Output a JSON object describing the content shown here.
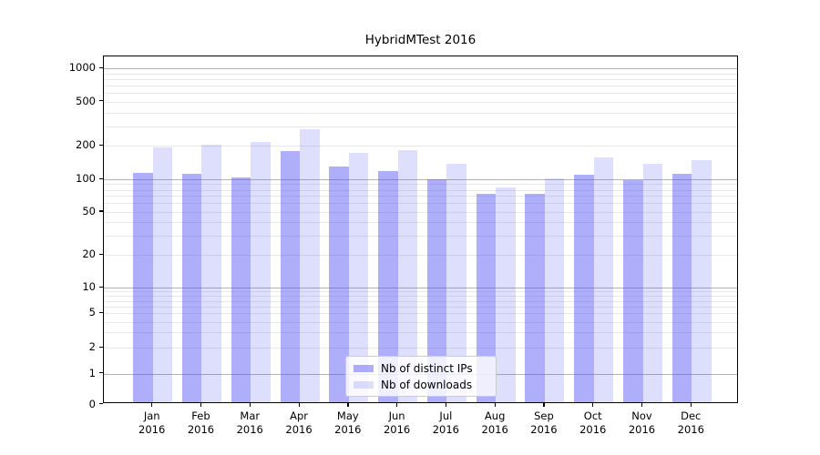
{
  "chart_data": {
    "type": "bar",
    "title": "HybridMTest 2016",
    "categories": [
      "Jan 2016",
      "Feb 2016",
      "Mar 2016",
      "Apr 2016",
      "May 2016",
      "Jun 2016",
      "Jul 2016",
      "Aug 2016",
      "Sep 2016",
      "Oct 2016",
      "Nov 2016",
      "Dec 2016"
    ],
    "months": [
      "Jan",
      "Feb",
      "Mar",
      "Apr",
      "May",
      "Jun",
      "Jul",
      "Aug",
      "Sep",
      "Oct",
      "Nov",
      "Dec"
    ],
    "year": "2016",
    "series": [
      {
        "name": "Nb of distinct IPs",
        "values": [
          112,
          110,
          102,
          178,
          128,
          117,
          98,
          72,
          72,
          109,
          97,
          110
        ]
      },
      {
        "name": "Nb of downloads",
        "values": [
          190,
          200,
          215,
          277,
          171,
          180,
          136,
          83,
          100,
          155,
          136,
          146
        ]
      }
    ],
    "yscale": "symlog",
    "ytick_labels": [
      "0",
      "1",
      "2",
      "5",
      "10",
      "20",
      "50",
      "100",
      "200",
      "500",
      "1000"
    ],
    "yticks": [
      0,
      1,
      2,
      5,
      10,
      20,
      50,
      100,
      200,
      500,
      1000
    ],
    "major_grid_values": [
      1,
      10,
      100,
      1000
    ],
    "ylim": [
      0,
      1280
    ],
    "grid": true,
    "legend_position": "lower center"
  },
  "legend": {
    "items": [
      {
        "label": "Nb of distinct IPs"
      },
      {
        "label": "Nb of downloads"
      }
    ]
  },
  "colors": {
    "ips_fill": "rgba(82,82,245,0.47)",
    "downloads_fill": "rgba(82,82,245,0.19)",
    "grid_major": "#b3b3b3",
    "grid_minor": "#e8e8e8",
    "axis": "#000000",
    "background": "#ffffff"
  }
}
